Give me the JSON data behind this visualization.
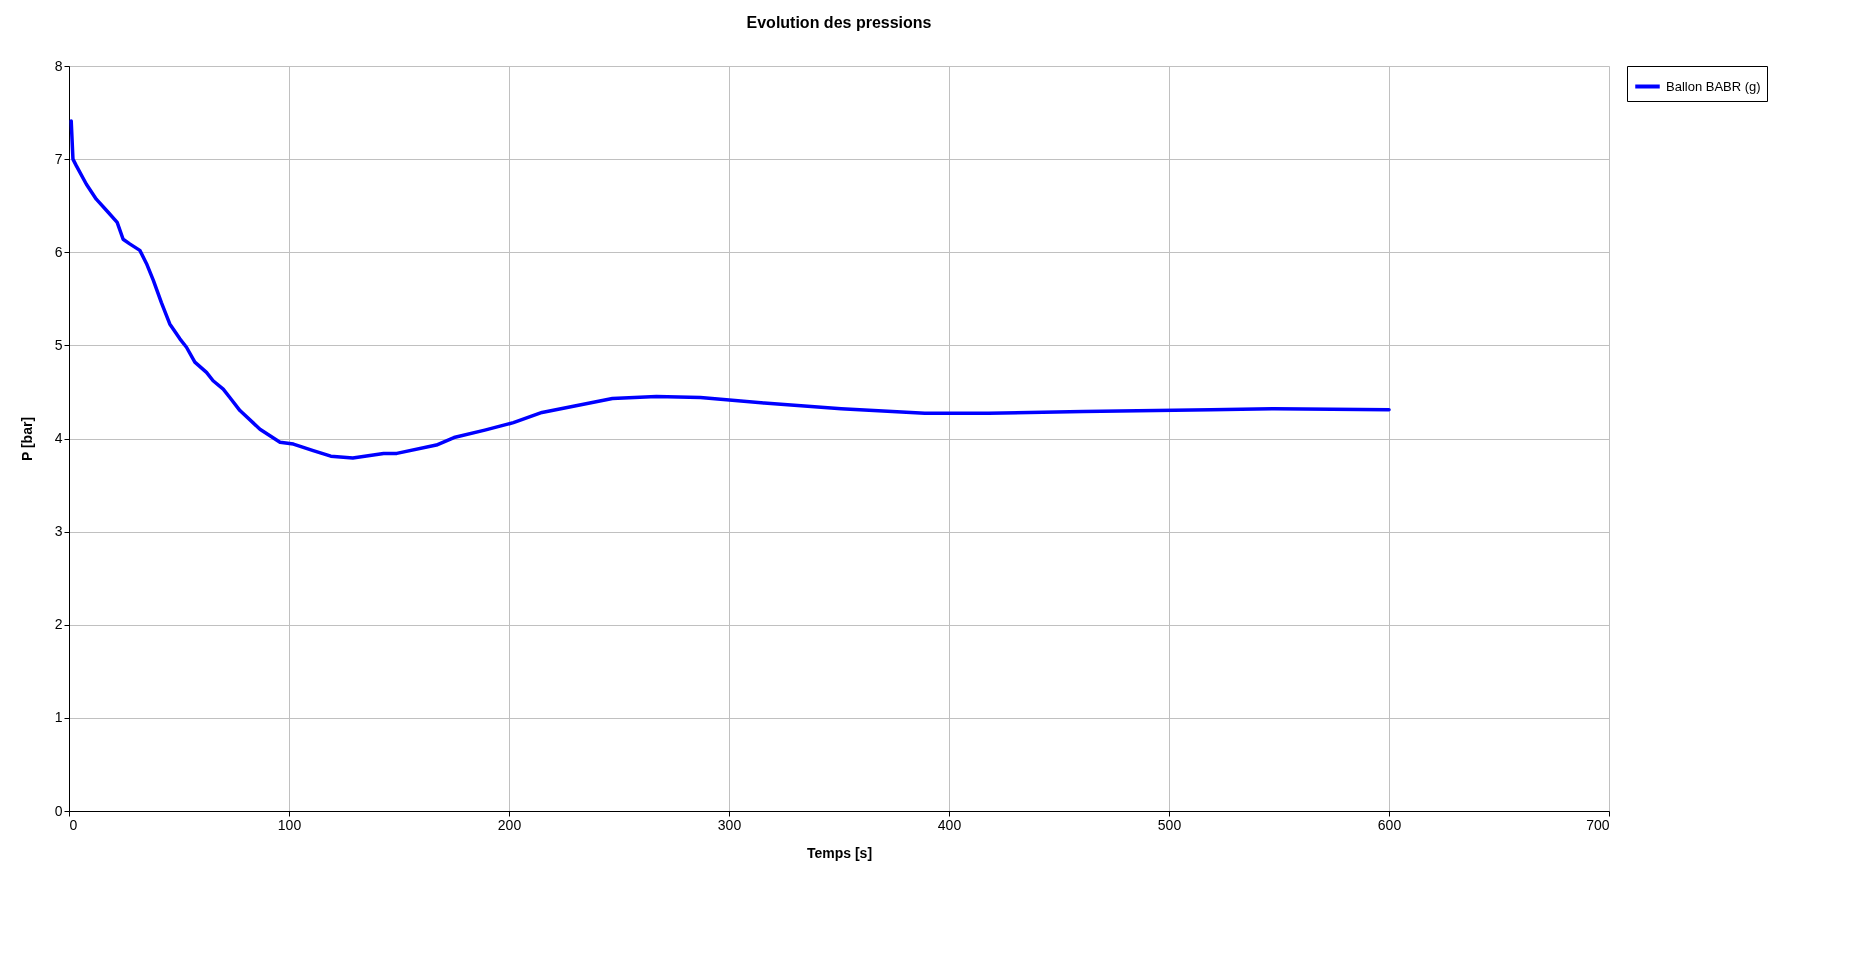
{
  "chart_data": {
    "type": "line",
    "title": "Evolution des pressions",
    "xlabel": "Temps [s]",
    "ylabel": "P [bar]",
    "xlim": [
      0,
      700
    ],
    "xticks": [
      0,
      100,
      200,
      300,
      400,
      500,
      600,
      700
    ],
    "ylim": [
      0,
      8
    ],
    "yticks": [
      0,
      1,
      2,
      3,
      4,
      5,
      6,
      7,
      8
    ],
    "grid": true,
    "legend": "right",
    "marker": "none",
    "line_style": "solid",
    "series": [
      {
        "name": "Ballon BABR (g)",
        "color": "#0000ff",
        "x": [
          1,
          1.8,
          3.3,
          7.9,
          12.4,
          17.8,
          21.9,
          24.6,
          27.6,
          32.2,
          35.2,
          38.3,
          42,
          45.8,
          50.4,
          53.4,
          57.2,
          62.5,
          65.5,
          70.1,
          73.1,
          77.7,
          86.8,
          95.9,
          102,
          111,
          119,
          129,
          143,
          149,
          167,
          175,
          189,
          202,
          215,
          247,
          267,
          287,
          316,
          351,
          389,
          418,
          461,
          519,
          548,
          600
        ],
        "values": [
          7.41,
          7.0,
          6.93,
          6.73,
          6.57,
          6.43,
          6.32,
          6.14,
          6.09,
          6.02,
          5.88,
          5.7,
          5.46,
          5.23,
          5.07,
          4.98,
          4.82,
          4.71,
          4.62,
          4.53,
          4.44,
          4.3,
          4.1,
          3.96,
          3.94,
          3.87,
          3.81,
          3.79,
          3.84,
          3.84,
          3.93,
          4.01,
          4.09,
          4.17,
          4.28,
          4.43,
          4.45,
          4.44,
          4.38,
          4.32,
          4.27,
          4.27,
          4.29,
          4.31,
          4.32,
          4.31
        ]
      }
    ]
  }
}
